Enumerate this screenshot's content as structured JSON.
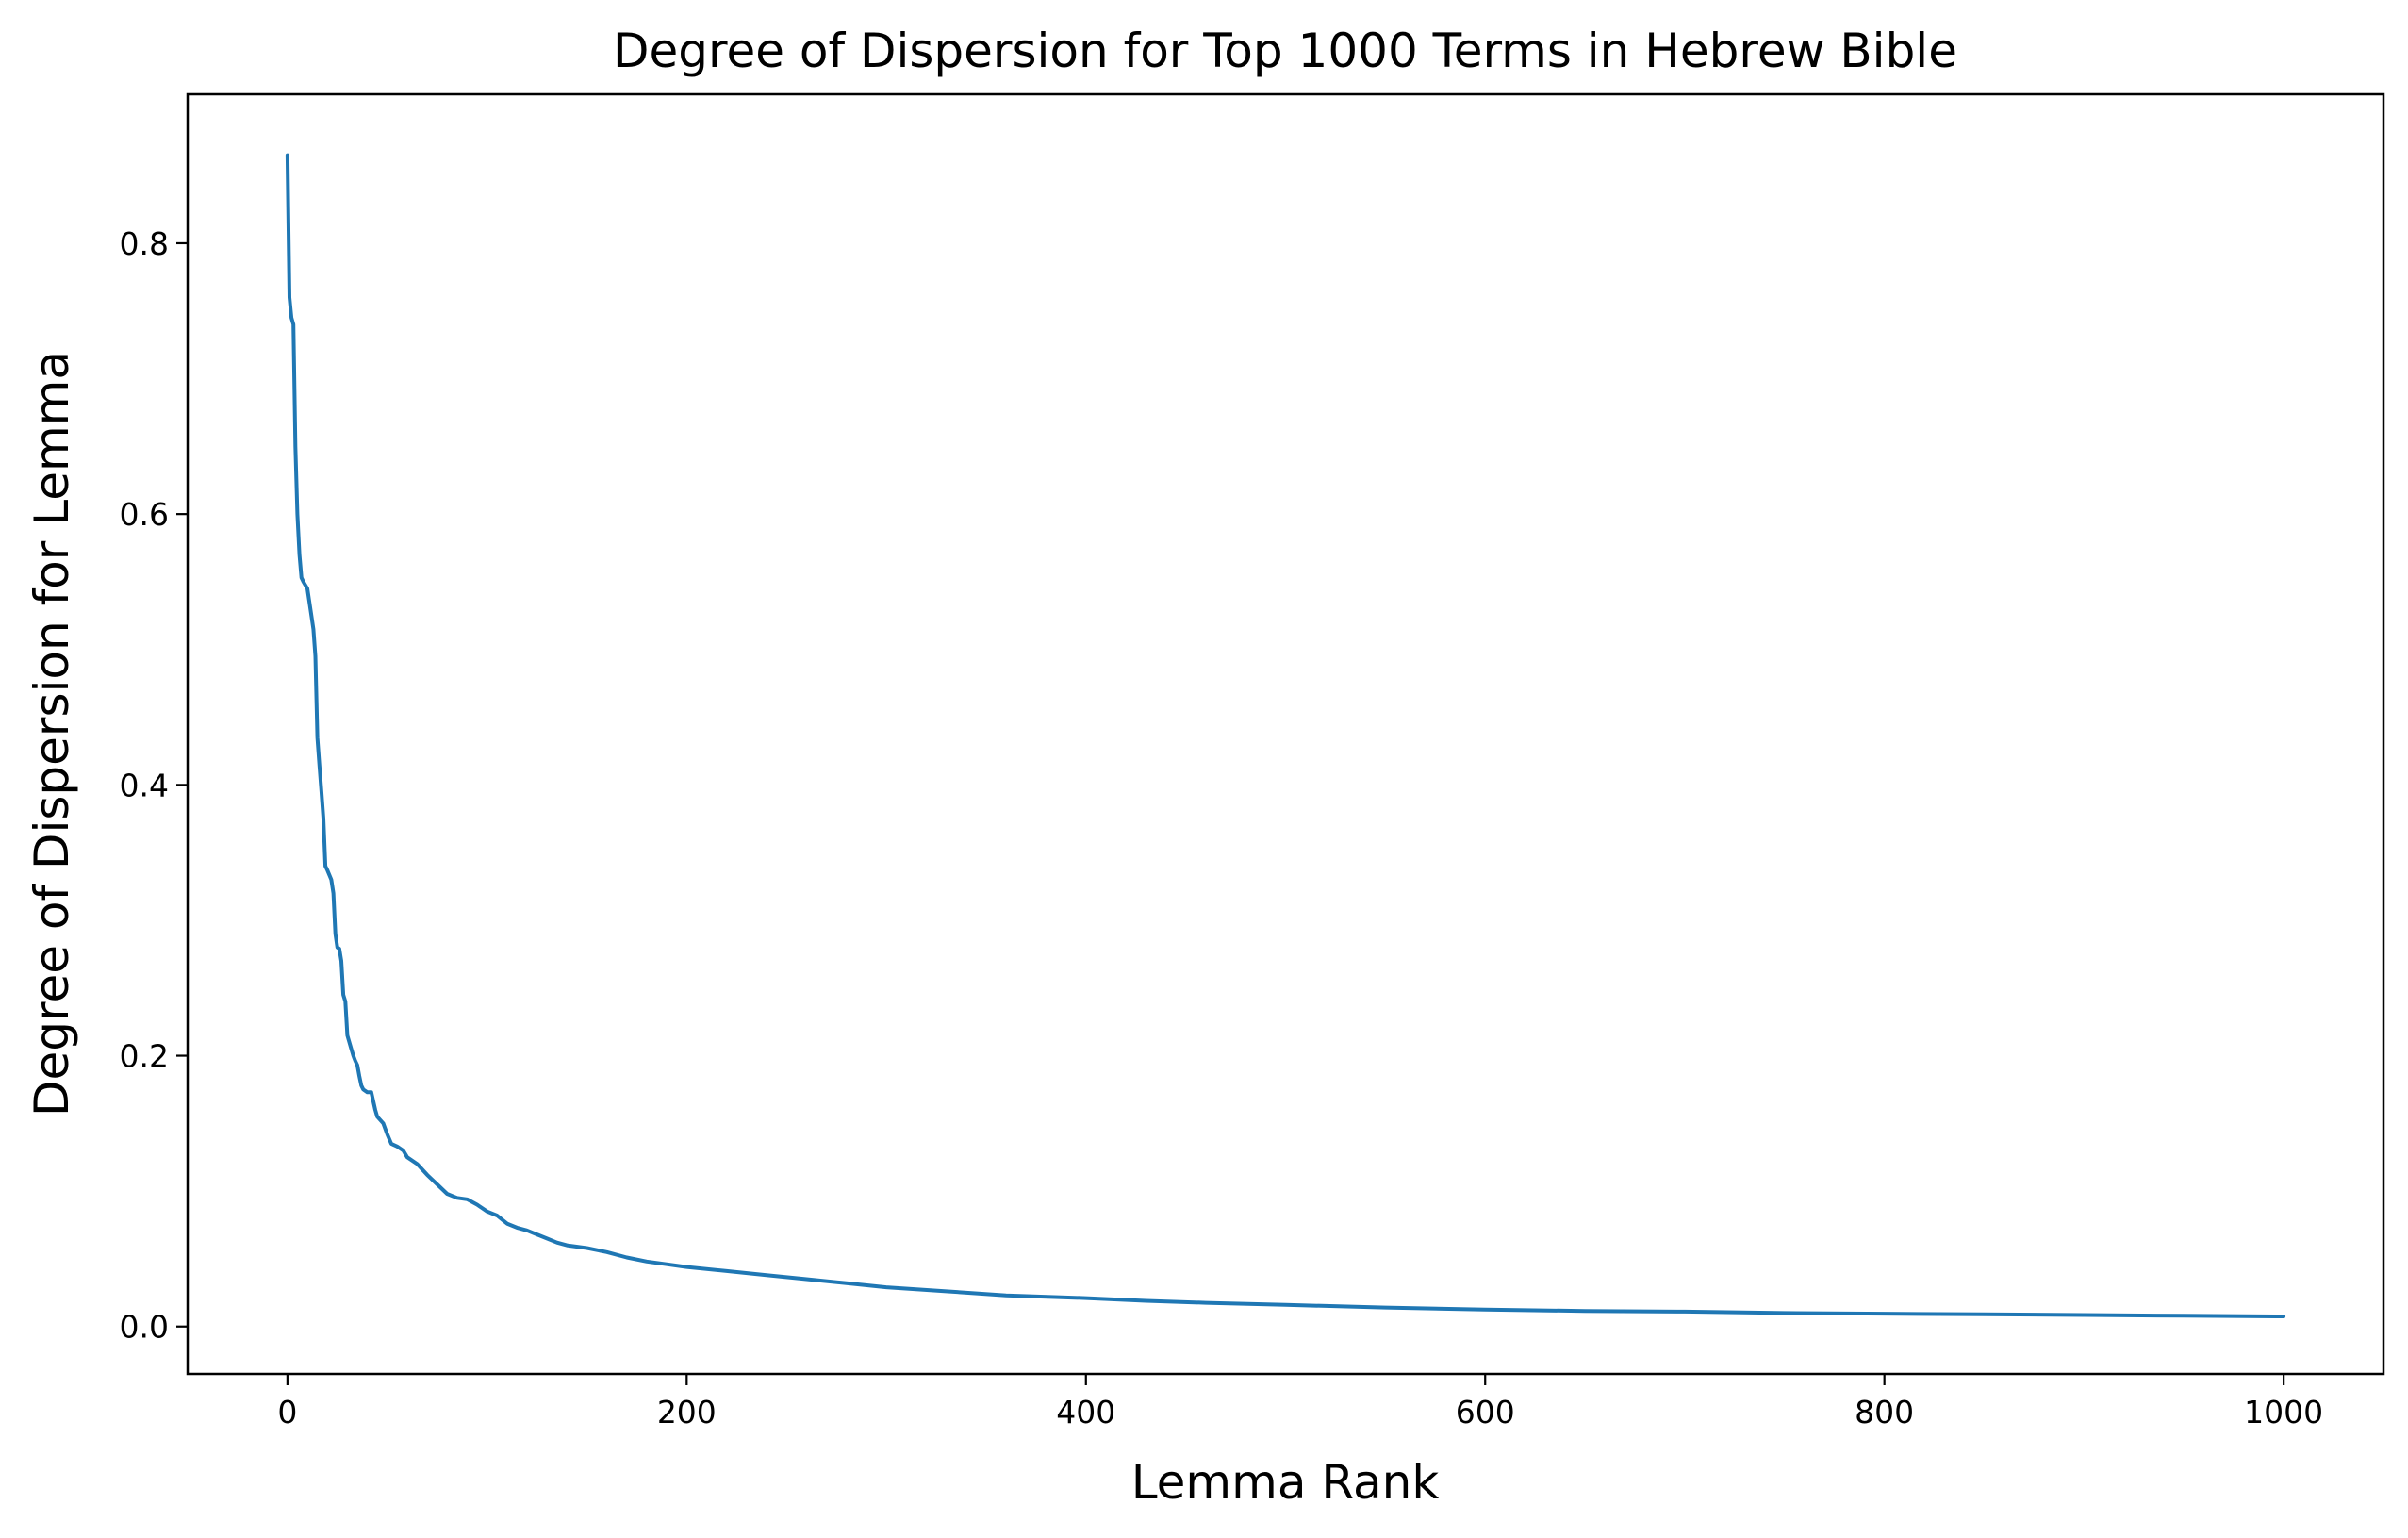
{
  "chart_data": {
    "type": "line",
    "title": "Degree of Dispersion for Top 1000 Terms in Hebrew Bible",
    "xlabel": "Lemma Rank",
    "ylabel": "Degree of Dispersion for Lemma",
    "xlim": [
      -50,
      1050
    ],
    "ylim": [
      -0.035,
      0.91
    ],
    "x_ticks": [
      0,
      200,
      400,
      600,
      800,
      1000
    ],
    "x_tick_labels": [
      "0",
      "200",
      "400",
      "600",
      "800",
      "1000"
    ],
    "y_ticks": [
      0.0,
      0.2,
      0.4,
      0.6,
      0.8
    ],
    "y_tick_labels": [
      "0.0",
      "0.2",
      "0.4",
      "0.6",
      "0.8"
    ],
    "grid": false,
    "legend": "none",
    "series": [
      {
        "color": "#1f77b4",
        "x": [
          0,
          1,
          2,
          3,
          4,
          5,
          6,
          7,
          8,
          10,
          12,
          13,
          14,
          15,
          16,
          17,
          18,
          19,
          20,
          22,
          23,
          24,
          25,
          26,
          27,
          28,
          29,
          30,
          32,
          33,
          34,
          35,
          36,
          37,
          38,
          40,
          42,
          44,
          45,
          48,
          50,
          52,
          55,
          58,
          60,
          65,
          70,
          75,
          80,
          85,
          90,
          95,
          100,
          105,
          110,
          115,
          120,
          125,
          130,
          135,
          140,
          150,
          160,
          170,
          180,
          190,
          200,
          220,
          240,
          260,
          280,
          300,
          330,
          360,
          400,
          430,
          460,
          500,
          550,
          600,
          650,
          700,
          750,
          800,
          850,
          900,
          950,
          1000
        ],
        "y": [
          0.865,
          0.76,
          0.745,
          0.74,
          0.65,
          0.6,
          0.57,
          0.553,
          0.55,
          0.545,
          0.525,
          0.515,
          0.495,
          0.435,
          0.415,
          0.395,
          0.375,
          0.34,
          0.337,
          0.33,
          0.32,
          0.29,
          0.28,
          0.279,
          0.27,
          0.245,
          0.24,
          0.215,
          0.205,
          0.2,
          0.196,
          0.193,
          0.185,
          0.178,
          0.175,
          0.173,
          0.173,
          0.16,
          0.155,
          0.15,
          0.142,
          0.135,
          0.133,
          0.13,
          0.125,
          0.12,
          0.112,
          0.105,
          0.098,
          0.095,
          0.094,
          0.09,
          0.085,
          0.082,
          0.076,
          0.073,
          0.071,
          0.068,
          0.065,
          0.062,
          0.06,
          0.058,
          0.055,
          0.051,
          0.048,
          0.046,
          0.044,
          0.041,
          0.038,
          0.035,
          0.032,
          0.029,
          0.026,
          0.023,
          0.021,
          0.019,
          0.0175,
          0.016,
          0.014,
          0.0125,
          0.0115,
          0.011,
          0.01,
          0.0095,
          0.009,
          0.0085,
          0.008,
          0.0075
        ]
      }
    ]
  }
}
